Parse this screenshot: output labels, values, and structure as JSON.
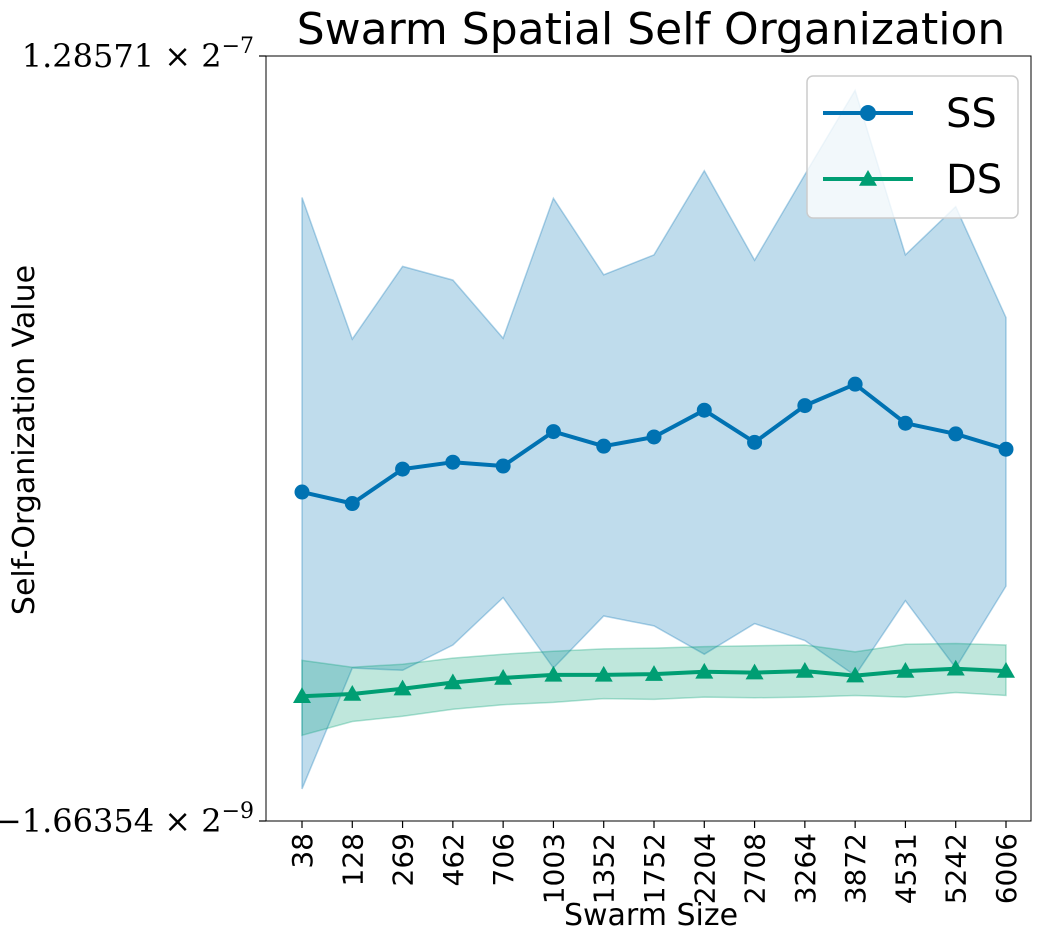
{
  "chart_data": {
    "type": "line",
    "title": "Swarm Spatial Self Organization",
    "xlabel": "Swarm Size",
    "ylabel": "Self-Organization Value",
    "categories": [
      "38",
      "128",
      "269",
      "462",
      "706",
      "1003",
      "1352",
      "1752",
      "2204",
      "2708",
      "3264",
      "3872",
      "4531",
      "5242",
      "6006"
    ],
    "y_tick_labels": [
      {
        "mantissa": "1.28571",
        "base": "2",
        "exponent": "−7",
        "value": 1.0
      },
      {
        "mantissa": "−1.66354",
        "base": "2",
        "exponent": "−9",
        "value": 0.0
      }
    ],
    "ylim": [
      0,
      1
    ],
    "grid": false,
    "legend_position": "top-right",
    "series": [
      {
        "name": "SS",
        "color": "#0072b2",
        "marker": "circle",
        "values": [
          0.43,
          0.415,
          0.46,
          0.469,
          0.464,
          0.509,
          0.49,
          0.502,
          0.537,
          0.495,
          0.543,
          0.571,
          0.52,
          0.506,
          0.486
        ],
        "band_upper": [
          0.815,
          0.63,
          0.725,
          0.707,
          0.631,
          0.814,
          0.714,
          0.74,
          0.85,
          0.733,
          0.845,
          0.955,
          0.74,
          0.803,
          0.658
        ],
        "band_lower": [
          0.042,
          0.2,
          0.197,
          0.23,
          0.292,
          0.2,
          0.268,
          0.255,
          0.218,
          0.258,
          0.236,
          0.19,
          0.288,
          0.2,
          0.307
        ]
      },
      {
        "name": "DS",
        "color": "#009e73",
        "marker": "triangle",
        "values": [
          0.163,
          0.166,
          0.173,
          0.181,
          0.187,
          0.191,
          0.191,
          0.192,
          0.195,
          0.194,
          0.196,
          0.19,
          0.196,
          0.199,
          0.196
        ],
        "band_upper": [
          0.21,
          0.201,
          0.205,
          0.213,
          0.218,
          0.222,
          0.225,
          0.226,
          0.228,
          0.229,
          0.23,
          0.221,
          0.231,
          0.232,
          0.23
        ],
        "band_lower": [
          0.112,
          0.13,
          0.137,
          0.146,
          0.152,
          0.155,
          0.16,
          0.159,
          0.162,
          0.161,
          0.162,
          0.164,
          0.162,
          0.168,
          0.164
        ]
      }
    ]
  }
}
